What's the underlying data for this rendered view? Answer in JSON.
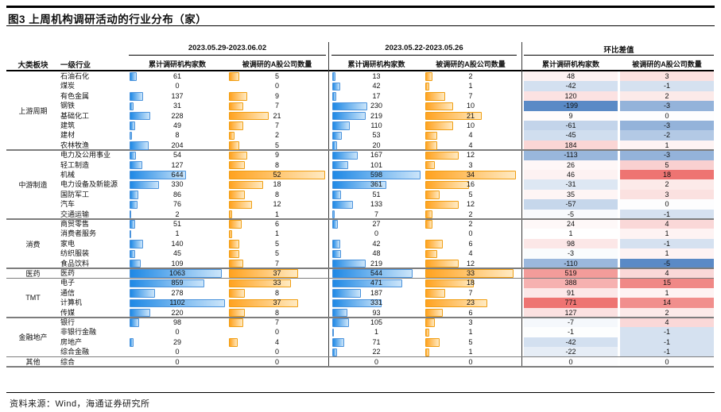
{
  "title": "图3  上周机构调研活动的行业分布（家）",
  "source_note": "资料来源：Wind，海通证券研究所",
  "header": {
    "sector_col": "大类板块",
    "industry_col": "一级行业",
    "groups": [
      {
        "title": "2023.05.29-2023.06.02",
        "cols": [
          "累计调研机构家数",
          "被调研的A股公司数量"
        ]
      },
      {
        "title": "2023.05.22-2023.05.26",
        "cols": [
          "累计调研机构家数",
          "被调研的A股公司数量"
        ]
      },
      {
        "title": "环比差值",
        "cols": [
          "累计调研机构家数",
          "被调研的A股公司数量"
        ]
      }
    ]
  },
  "colors": {
    "bar_blue_start": "#1E88E5",
    "bar_blue_end": "#CBE5FA",
    "bar_blue_border": "#4B93DC",
    "bar_orange_start": "#FFA21F",
    "bar_orange_end": "#FFEAC2",
    "bar_orange_border": "#F09E13",
    "heat_red": "#EE7472",
    "heat_blue": "#5A8AC6"
  },
  "chart_data": {
    "type": "table",
    "period_1": "2023.05.29-2023.06.02",
    "period_2": "2023.05.22-2023.05.26",
    "diff_label": "环比差值",
    "metrics": [
      "累计调研机构家数",
      "被调研的A股公司数量"
    ],
    "sectors": [
      {
        "name": "上游周期",
        "span": 8
      },
      {
        "name": "中游制造",
        "span": 7
      },
      {
        "name": "消费",
        "span": 5
      },
      {
        "name": "医药",
        "span": 1
      },
      {
        "name": "TMT",
        "span": 4
      },
      {
        "name": "金融地产",
        "span": 4
      },
      {
        "name": "其他",
        "span": 1
      }
    ],
    "row_fields": [
      "industry",
      "w1_inst",
      "w1_comp",
      "w2_inst",
      "w2_comp",
      "diff_inst",
      "diff_comp"
    ],
    "rows": [
      [
        "石油石化",
        61,
        5,
        13,
        2,
        48,
        3
      ],
      [
        "煤炭",
        0,
        0,
        42,
        1,
        -42,
        -1
      ],
      [
        "有色金属",
        137,
        9,
        17,
        7,
        120,
        2
      ],
      [
        "钢铁",
        31,
        7,
        230,
        10,
        -199,
        -3
      ],
      [
        "基础化工",
        228,
        21,
        219,
        21,
        9,
        0
      ],
      [
        "建筑",
        49,
        7,
        110,
        10,
        -61,
        -3
      ],
      [
        "建材",
        8,
        2,
        53,
        4,
        -45,
        -2
      ],
      [
        "农林牧渔",
        204,
        5,
        20,
        4,
        184,
        1
      ],
      [
        "电力及公用事业",
        54,
        9,
        167,
        12,
        -113,
        -3
      ],
      [
        "轻工制造",
        127,
        8,
        101,
        3,
        26,
        5
      ],
      [
        "机械",
        644,
        52,
        598,
        34,
        46,
        18
      ],
      [
        "电力设备及新能源",
        330,
        18,
        361,
        16,
        -31,
        2
      ],
      [
        "国防军工",
        86,
        8,
        51,
        5,
        35,
        3
      ],
      [
        "汽车",
        76,
        12,
        133,
        12,
        -57,
        0
      ],
      [
        "交通运输",
        2,
        1,
        7,
        2,
        -5,
        -1
      ],
      [
        "商贸零售",
        51,
        6,
        27,
        2,
        24,
        4
      ],
      [
        "消费者服务",
        1,
        1,
        0,
        0,
        1,
        1
      ],
      [
        "家电",
        140,
        5,
        42,
        6,
        98,
        -1
      ],
      [
        "纺织服装",
        45,
        5,
        48,
        4,
        -3,
        1
      ],
      [
        "食品饮料",
        109,
        7,
        219,
        12,
        -110,
        -5
      ],
      [
        "医药",
        1063,
        37,
        544,
        33,
        519,
        4
      ],
      [
        "电子",
        859,
        33,
        471,
        18,
        388,
        15
      ],
      [
        "通信",
        278,
        8,
        187,
        7,
        91,
        1
      ],
      [
        "计算机",
        1102,
        37,
        331,
        23,
        771,
        14
      ],
      [
        "传媒",
        220,
        8,
        93,
        6,
        127,
        2
      ],
      [
        "银行",
        98,
        7,
        105,
        3,
        -7,
        4
      ],
      [
        "非银行金融",
        0,
        0,
        1,
        1,
        -1,
        -1
      ],
      [
        "房地产",
        29,
        4,
        71,
        5,
        -42,
        -1
      ],
      [
        "综合金融",
        0,
        0,
        22,
        1,
        -22,
        -1
      ],
      [
        "综合",
        0,
        0,
        0,
        0,
        0,
        0
      ]
    ]
  }
}
